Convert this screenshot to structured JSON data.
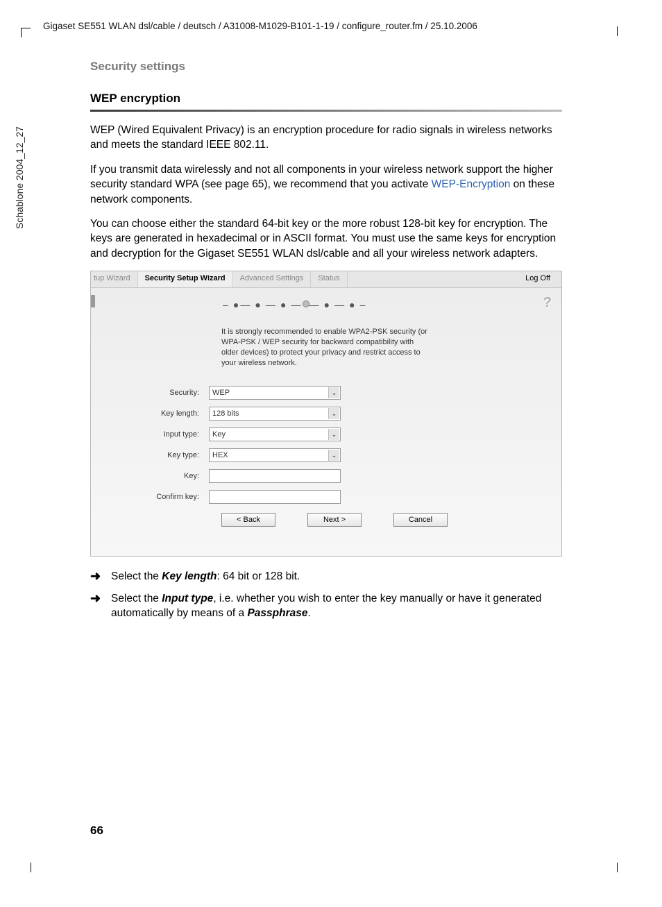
{
  "header": {
    "path": "Gigaset SE551 WLAN dsl/cable / deutsch / A31008-M1029-B101-1-19 / configure_router.fm / 25.10.2006"
  },
  "side": {
    "text": "Schablone 2004_12_27"
  },
  "page": {
    "section_title": "Security settings",
    "sub_title": "WEP encryption",
    "para1": "WEP (Wired Equivalent Privacy) is an encryption procedure for radio signals in wireless networks and meets the standard IEEE 802.11.",
    "para2a": "If you transmit data wirelessly and not all components in your wireless network support the higher security standard WPA (see page 65), we recommend that you activate ",
    "para2_link": "WEP",
    "para2b": "-Encryption",
    "para2c": " on these network components.",
    "para3": "You can choose either the standard 64-bit key or the more robust 128-bit key for encryption. The keys are generated in hexadecimal or in ASCII format. You must use the same keys for encryption and decryption for the Gigaset SE551 WLAN dsl/cable and all your wireless network adapters.",
    "bullet1a": "Select the ",
    "bullet1b": "Key length",
    "bullet1c": ": 64 bit or 128 bit.",
    "bullet2a": "Select the ",
    "bullet2b": "Input type",
    "bullet2c": ", i.e. whether you wish to enter the key manually or have it generated automatically by means of a ",
    "bullet2d": "Passphrase",
    "bullet2e": ".",
    "number": "66"
  },
  "shot": {
    "tabs": {
      "t0": "tup Wizard",
      "t1": "Security Setup Wizard",
      "t2": "Advanced Settings",
      "t3": "Status"
    },
    "logoff": "Log Off",
    "help": "?",
    "intro": "It is strongly recommended to enable WPA2-PSK security (or WPA-PSK / WEP security for backward compatibility with older devices) to protect your privacy and restrict access to your wireless network.",
    "labels": {
      "security": "Security:",
      "keylen": "Key length:",
      "inputtype": "Input type:",
      "keytype": "Key type:",
      "key": "Key:",
      "confirm": "Confirm key:"
    },
    "values": {
      "security": "WEP",
      "keylen": "128 bits",
      "inputtype": "Key",
      "keytype": "HEX",
      "key": "",
      "confirm": ""
    },
    "buttons": {
      "back": "< Back",
      "next": "Next >",
      "cancel": "Cancel"
    }
  }
}
